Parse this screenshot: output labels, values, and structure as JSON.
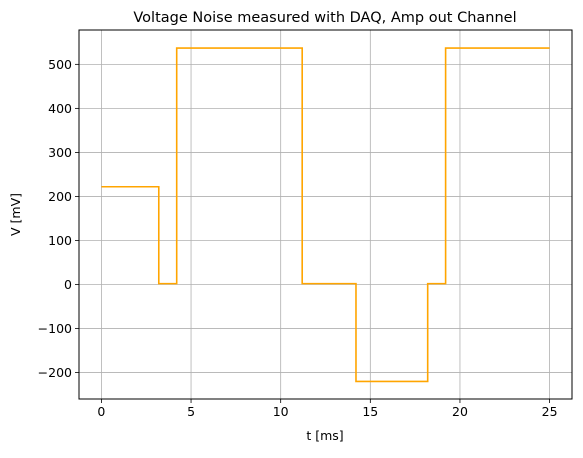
{
  "chart_data": {
    "type": "line",
    "title": "Voltage Noise measured with DAQ, Amp out Channel",
    "xlabel": "t  [ms]",
    "ylabel": "V  [mV]",
    "xlim": [
      -1.25,
      26.25
    ],
    "ylim": [
      -260,
      578
    ],
    "xticks": [
      0,
      5,
      10,
      15,
      20,
      25
    ],
    "yticks": [
      -200,
      -100,
      0,
      100,
      200,
      300,
      400,
      500
    ],
    "grid": true,
    "line_color": "#FFA500",
    "series": [
      {
        "x": [
          0,
          3.2,
          3.2,
          4.2,
          4.2,
          11.2,
          11.2,
          14.2,
          14.2,
          18.2,
          18.2,
          19.2,
          19.2,
          25
        ],
        "values": [
          222,
          222,
          2,
          2,
          537,
          537,
          2,
          2,
          -220,
          -220,
          2,
          2,
          537,
          537
        ]
      }
    ]
  }
}
